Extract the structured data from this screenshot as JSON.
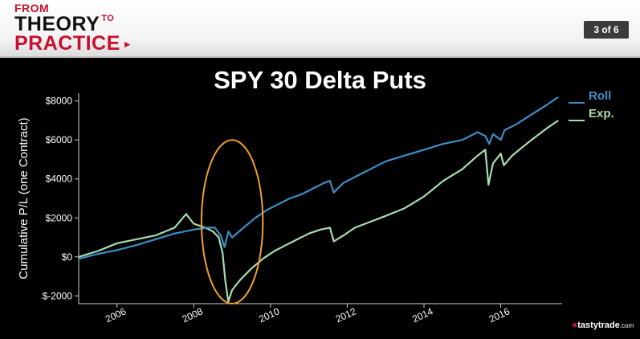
{
  "header": {
    "logo_line1": "FROM",
    "logo_line2": "THEORY",
    "logo_small": "TO",
    "logo_line3": "PRACTICE",
    "page_indicator": "3 of 6"
  },
  "brand": {
    "name": "tastytrade",
    "suffix": ".com"
  },
  "colors": {
    "roll": "#3d8fc6",
    "exp": "#a8ddb0",
    "highlight": "#f0a030"
  },
  "chart_data": {
    "type": "line",
    "title": "SPY 30 Delta Puts",
    "ylabel": "Cumulative P/L (one Contract)",
    "xlabel": "",
    "xlim": [
      2005.0,
      2017.6
    ],
    "ylim": [
      -2400,
      8400
    ],
    "yticks": [
      -2000,
      0,
      2000,
      4000,
      6000,
      8000
    ],
    "ytick_labels": [
      "$-2000",
      "$0",
      "$2000",
      "$4000",
      "$6000",
      "$8000"
    ],
    "xticks": [
      2006,
      2008,
      2010,
      2012,
      2014,
      2016
    ],
    "xtick_labels": [
      "2006",
      "2008",
      "2010",
      "2012",
      "2014",
      "2016"
    ],
    "grid": false,
    "legend_position": "top-right",
    "series": [
      {
        "name": "Roll",
        "x": [
          2005.0,
          2005.5,
          2006.0,
          2006.5,
          2007.0,
          2007.5,
          2008.0,
          2008.35,
          2008.55,
          2008.7,
          2008.8,
          2008.9,
          2009.0,
          2009.3,
          2009.6,
          2009.9,
          2010.2,
          2010.5,
          2010.8,
          2011.1,
          2011.4,
          2011.55,
          2011.65,
          2011.9,
          2012.3,
          2012.7,
          2013.0,
          2013.5,
          2014.0,
          2014.5,
          2015.0,
          2015.4,
          2015.6,
          2015.7,
          2015.8,
          2016.0,
          2016.1,
          2016.4,
          2016.8,
          2017.2,
          2017.5
        ],
        "values": [
          -100,
          150,
          350,
          600,
          900,
          1200,
          1400,
          1500,
          1500,
          1100,
          500,
          1300,
          1000,
          1500,
          2000,
          2400,
          2700,
          3000,
          3200,
          3500,
          3800,
          3900,
          3300,
          3800,
          4200,
          4600,
          4900,
          5200,
          5500,
          5800,
          6000,
          6400,
          6200,
          5800,
          6300,
          6000,
          6500,
          6800,
          7300,
          7800,
          8200
        ]
      },
      {
        "name": "Exp.",
        "x": [
          2005.0,
          2005.5,
          2006.0,
          2006.5,
          2007.0,
          2007.5,
          2007.8,
          2008.0,
          2008.3,
          2008.5,
          2008.65,
          2008.75,
          2008.82,
          2008.9,
          2009.0,
          2009.2,
          2009.5,
          2009.8,
          2010.1,
          2010.4,
          2010.7,
          2011.0,
          2011.3,
          2011.55,
          2011.65,
          2011.9,
          2012.2,
          2012.6,
          2013.0,
          2013.5,
          2014.0,
          2014.5,
          2015.0,
          2015.4,
          2015.6,
          2015.68,
          2015.8,
          2016.0,
          2016.08,
          2016.3,
          2016.8,
          2017.2,
          2017.5
        ],
        "values": [
          0,
          300,
          700,
          900,
          1100,
          1500,
          2200,
          1700,
          1500,
          1300,
          1000,
          200,
          -1200,
          -2300,
          -1700,
          -1200,
          -600,
          -100,
          300,
          600,
          900,
          1200,
          1400,
          1500,
          800,
          1100,
          1500,
          1800,
          2100,
          2500,
          3100,
          3900,
          4500,
          5200,
          5500,
          3700,
          4800,
          5300,
          4700,
          5200,
          6000,
          6600,
          7000
        ]
      }
    ],
    "annotations": [
      {
        "type": "ellipse",
        "color": "orange",
        "x_center": 2009.0,
        "y_center": 1800,
        "x_radius": 0.8,
        "y_radius": 4200
      }
    ]
  }
}
